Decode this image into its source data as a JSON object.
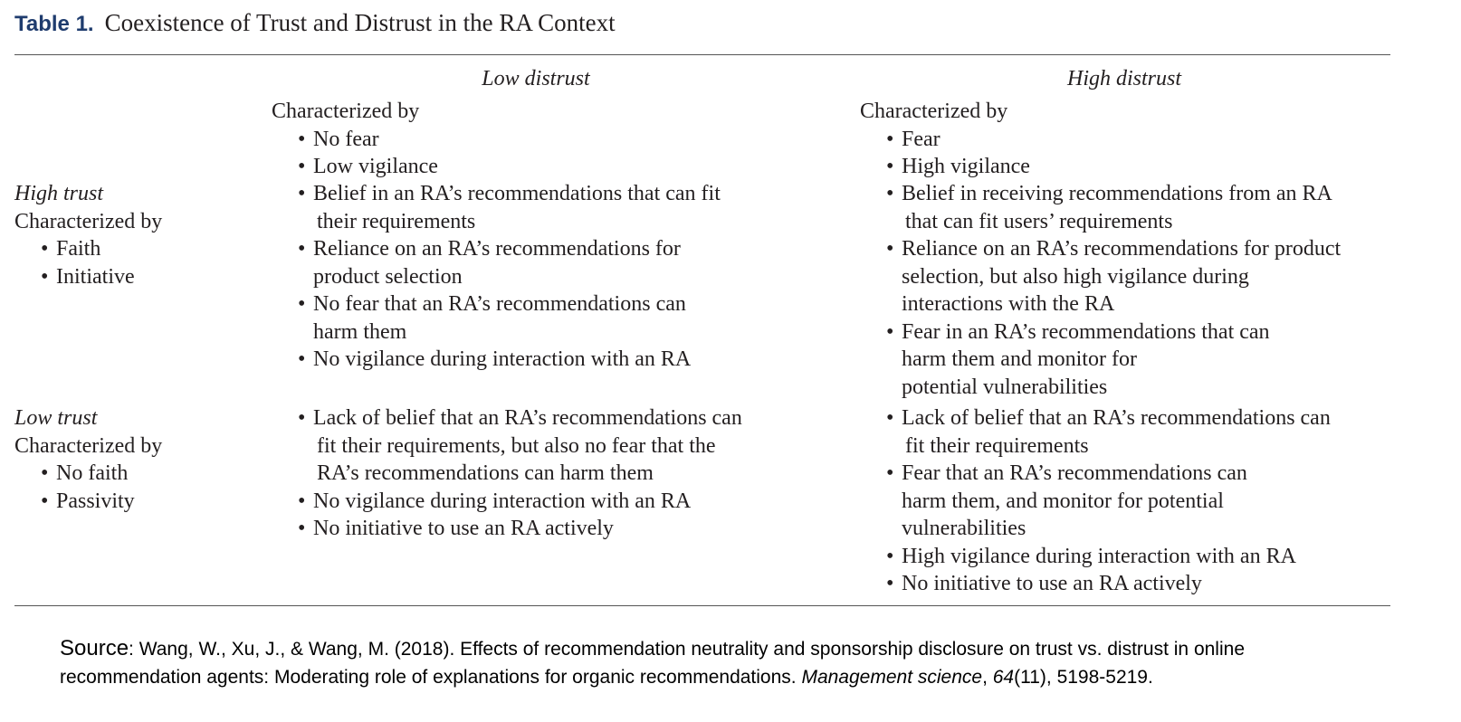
{
  "title": {
    "label": "Table 1.",
    "text": "Coexistence of Trust and Distrust in the RA Context"
  },
  "columns": {
    "low_distrust": "Low distrust",
    "high_distrust": "High distrust"
  },
  "header_cells": {
    "low_distrust": {
      "lead": "Characterized by",
      "bullets": [
        "No fear",
        "Low vigilance"
      ]
    },
    "high_distrust": {
      "lead": "Characterized by",
      "bullets": [
        "Fear",
        "High vigilance"
      ]
    }
  },
  "rows": {
    "high_trust": {
      "label": "High trust",
      "lead": "Characterized by",
      "bullets": [
        "Faith",
        "Initiative"
      ],
      "low_distrust": [
        [
          "Belief in an RA’s recommendations that can fit",
          "their requirements"
        ],
        [
          "Reliance on an RA’s recommendations for",
          "product selection"
        ],
        [
          "No fear that an RA’s recommendations can",
          "harm them"
        ],
        [
          "No vigilance during interaction with an RA"
        ]
      ],
      "high_distrust": [
        [
          "Belief in receiving recommendations from an RA",
          "that can fit users’ requirements"
        ],
        [
          "Reliance on an RA’s recommendations for product",
          "selection, but also high vigilance during",
          "interactions with the RA"
        ],
        [
          "Fear in an RA’s recommendations that can",
          "harm them and monitor for",
          "potential vulnerabilities"
        ]
      ]
    },
    "low_trust": {
      "label": "Low trust",
      "lead": "Characterized by",
      "bullets": [
        "No faith",
        "Passivity"
      ],
      "low_distrust": [
        [
          "Lack of belief that an RA’s recommendations can",
          "fit their requirements, but also no fear that the",
          "RA’s recommendations can harm them"
        ],
        [
          "No vigilance during interaction with an RA"
        ],
        [
          "No initiative to use an RA actively"
        ]
      ],
      "high_distrust": [
        [
          "Lack of belief that an RA’s recommendations can",
          "fit their requirements"
        ],
        [
          "Fear that an RA’s recommendations can",
          "harm them, and monitor for potential",
          "vulnerabilities"
        ],
        [
          "High vigilance during interaction with an RA"
        ],
        [
          "No initiative to use an RA actively"
        ]
      ]
    }
  },
  "source": {
    "label": "Source",
    "line1": ": Wang, W., Xu, J., & Wang, M. (2018). Effects of recommendation neutrality and sponsorship disclosure on trust vs. distrust in online",
    "line2_prefix": "recommendation agents: Moderating role of explanations for organic recommendations. ",
    "journal": "Management science",
    "sep": ", ",
    "volume": "64",
    "issue_pages": "(11), 5198-5219."
  }
}
